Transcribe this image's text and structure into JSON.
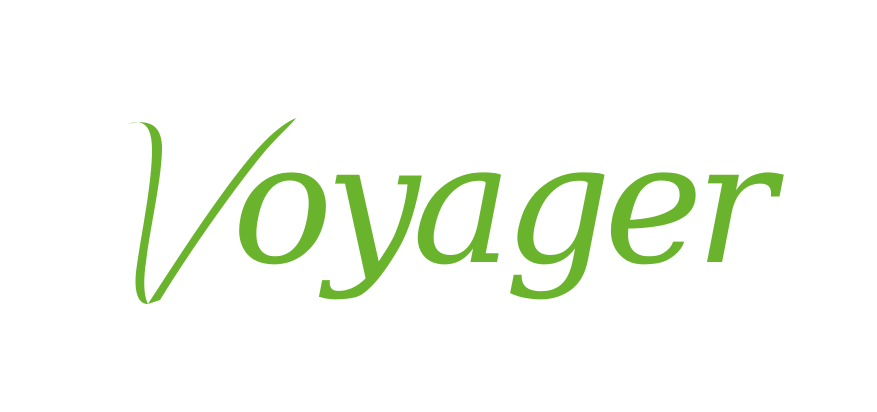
{
  "logo": {
    "text": "Voyager",
    "color": "#6ab42d",
    "style": "script-wordmark"
  }
}
